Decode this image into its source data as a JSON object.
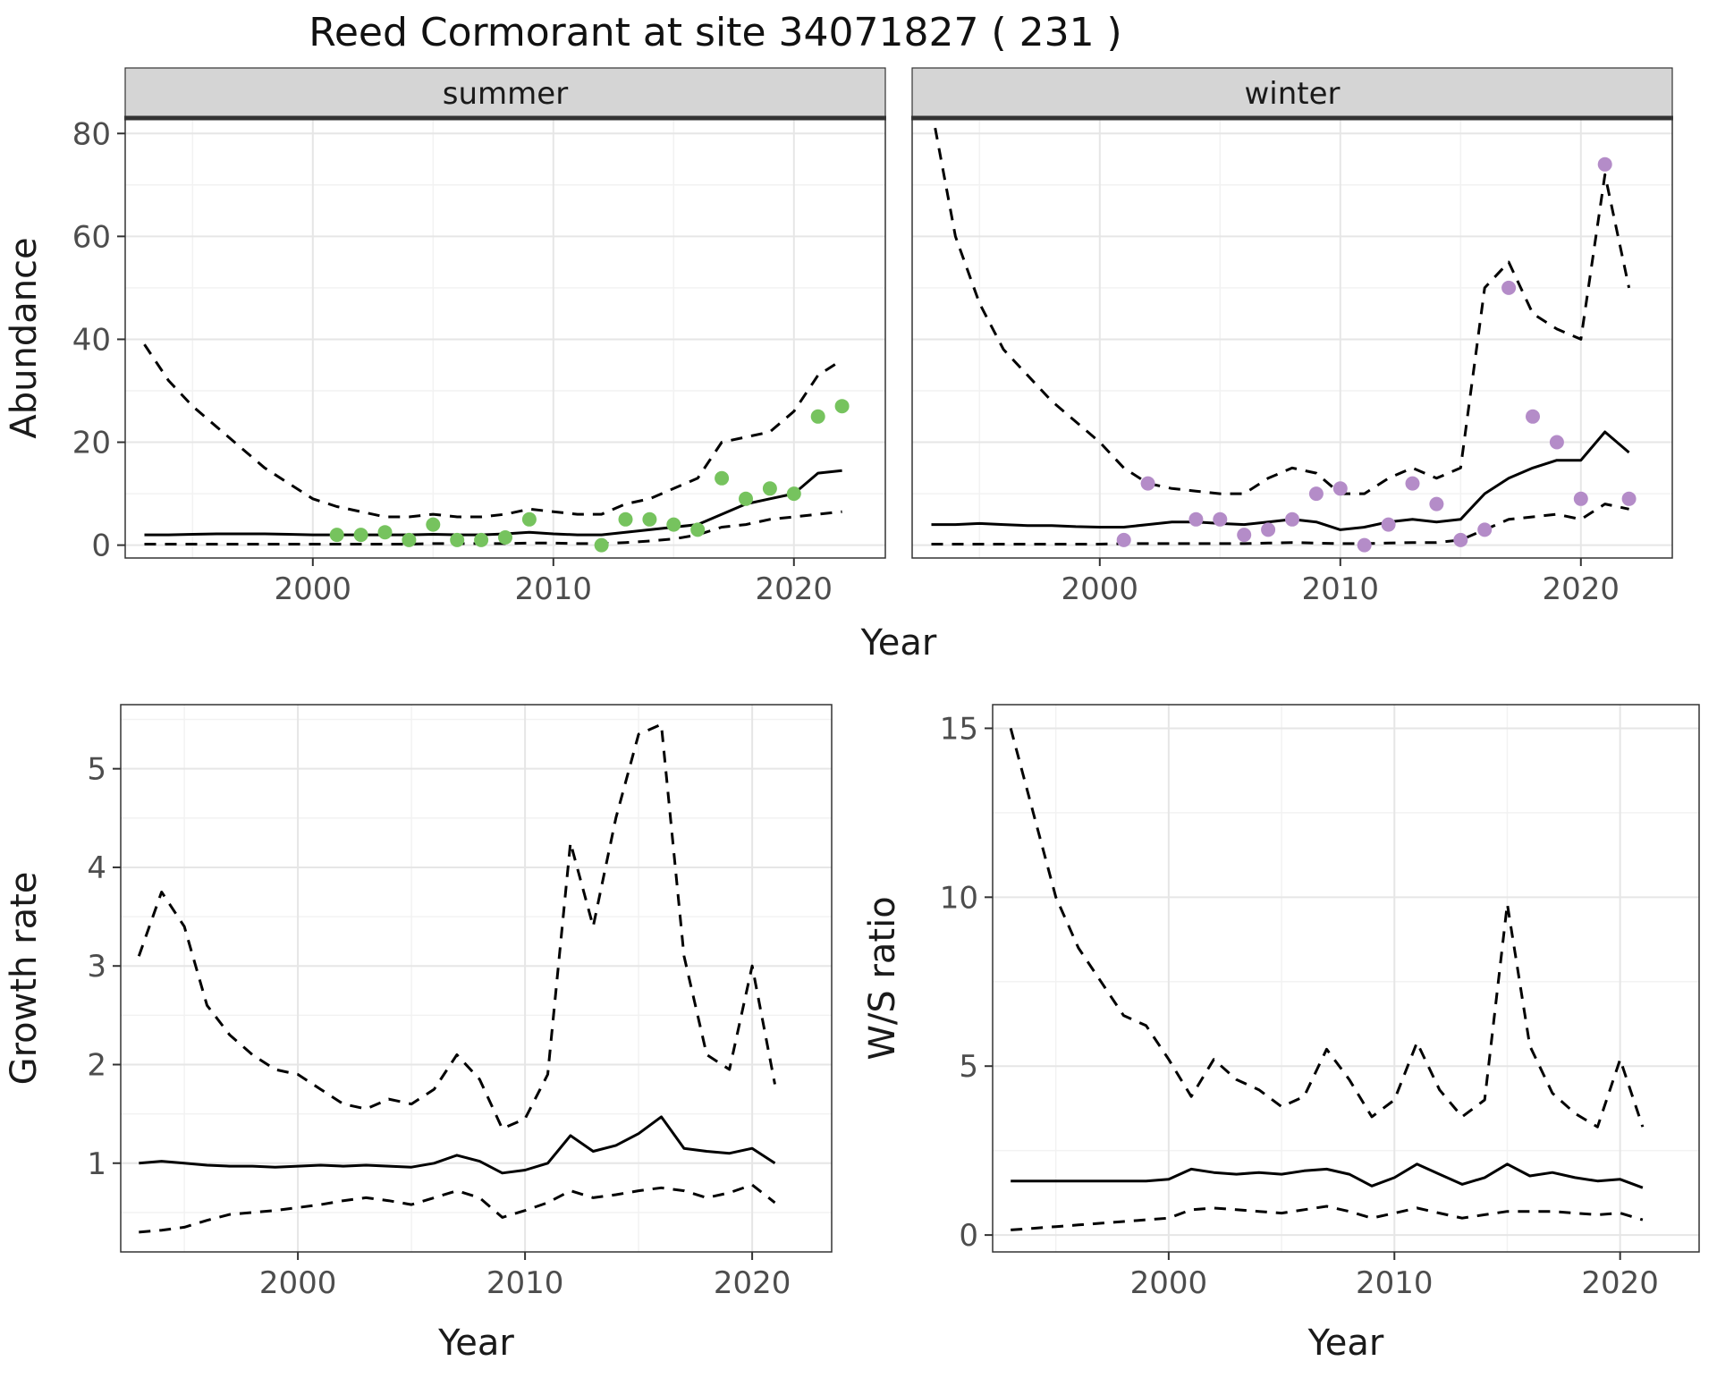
{
  "title": "Reed Cormorant at site 34071827 ( 231 )",
  "colors": {
    "summer_point": "#76c35e",
    "winter_point": "#b48cc8",
    "line": "#000000",
    "strip_bg": "#d5d5d5",
    "grid_major": "#e6e6e6",
    "grid_minor": "#f2f2f2",
    "border": "#333333",
    "tick_label": "#4d4d4d",
    "axis_title": "#1a1a1a"
  },
  "chart_data": [
    {
      "id": "abundance",
      "type": "line",
      "xlabel": "Year",
      "ylabel": "Abundance",
      "xlim": [
        1992.2,
        2023.8
      ],
      "ylim": [
        -2.5,
        83
      ],
      "xticks": [
        2000,
        2010,
        2020
      ],
      "xminor": [
        1995,
        2005,
        2015
      ],
      "yticks": [
        0,
        20,
        40,
        60,
        80
      ],
      "yminor": [
        10,
        30,
        50,
        70
      ],
      "years": [
        1993,
        1994,
        1995,
        1996,
        1997,
        1998,
        1999,
        2000,
        2001,
        2002,
        2003,
        2004,
        2005,
        2006,
        2007,
        2008,
        2009,
        2010,
        2011,
        2012,
        2013,
        2014,
        2015,
        2016,
        2017,
        2018,
        2019,
        2020,
        2021,
        2022
      ],
      "facets": [
        {
          "label": "summer",
          "point_color": "#76c35e",
          "fit": [
            2.0,
            2.0,
            2.1,
            2.2,
            2.2,
            2.2,
            2.1,
            2.0,
            2.0,
            2.0,
            2.0,
            2.0,
            2.1,
            2.0,
            2.0,
            2.2,
            2.5,
            2.2,
            2.0,
            2.0,
            2.5,
            3.0,
            3.5,
            4.0,
            6.0,
            8.0,
            9.0,
            10.0,
            14.0,
            14.5
          ],
          "upper": [
            39,
            32,
            27,
            23,
            19,
            15,
            12,
            9,
            7.5,
            6.5,
            5.5,
            5.5,
            6,
            5.5,
            5.5,
            6,
            7,
            6.5,
            6,
            6,
            8,
            9,
            11,
            13,
            20,
            21,
            22,
            26,
            33,
            36
          ],
          "lower": [
            0.2,
            0.2,
            0.2,
            0.2,
            0.2,
            0.2,
            0.2,
            0.2,
            0.2,
            0.2,
            0.2,
            0.2,
            0.3,
            0.3,
            0.3,
            0.3,
            0.4,
            0.4,
            0.3,
            0.3,
            0.5,
            0.8,
            1.2,
            2,
            3.5,
            4,
            5,
            5.5,
            6,
            6.5
          ],
          "points": {
            "x": [
              2001,
              2002,
              2003,
              2004,
              2005,
              2006,
              2007,
              2008,
              2009,
              2012,
              2013,
              2014,
              2015,
              2016,
              2017,
              2018,
              2019,
              2020,
              2021,
              2022
            ],
            "y": [
              2,
              2,
              2.5,
              1,
              4,
              1,
              1,
              1.5,
              5,
              0,
              5,
              5,
              4,
              3,
              13,
              9,
              11,
              10,
              25,
              27
            ]
          }
        },
        {
          "label": "winter",
          "point_color": "#b48cc8",
          "fit": [
            4,
            4,
            4.2,
            4,
            3.8,
            3.8,
            3.6,
            3.5,
            3.5,
            4,
            4.5,
            4.5,
            4.2,
            4,
            4.5,
            5,
            4.5,
            3,
            3.5,
            4.5,
            5,
            4.5,
            5,
            10,
            13,
            15,
            16.5,
            16.5,
            22,
            18
          ],
          "upper": [
            85,
            60,
            47,
            38,
            33,
            28,
            24,
            20,
            15,
            12,
            11,
            10.5,
            10,
            10,
            13,
            15,
            14,
            10,
            10,
            13,
            15,
            13,
            15,
            50,
            55,
            45,
            42,
            40,
            72,
            50
          ],
          "lower": [
            0.2,
            0.2,
            0.2,
            0.2,
            0.2,
            0.2,
            0.2,
            0.2,
            0.3,
            0.3,
            0.3,
            0.3,
            0.3,
            0.3,
            0.4,
            0.5,
            0.4,
            0.3,
            0.3,
            0.4,
            0.5,
            0.5,
            1,
            3,
            5,
            5.5,
            6,
            5,
            8,
            7
          ],
          "points": {
            "x": [
              2001,
              2002,
              2004,
              2005,
              2006,
              2007,
              2008,
              2009,
              2010,
              2011,
              2012,
              2013,
              2014,
              2015,
              2016,
              2017,
              2018,
              2019,
              2020,
              2021,
              2022
            ],
            "y": [
              1,
              12,
              5,
              5,
              2,
              3,
              5,
              10,
              11,
              0,
              4,
              12,
              8,
              1,
              3,
              50,
              25,
              20,
              9,
              74,
              9
            ]
          }
        }
      ]
    },
    {
      "id": "growth_rate",
      "type": "line",
      "xlabel": "Year",
      "ylabel": "Growth rate",
      "xlim": [
        1992.2,
        2023.5
      ],
      "ylim": [
        0.1,
        5.65
      ],
      "xticks": [
        2000,
        2010,
        2020
      ],
      "xminor": [
        1995,
        2005,
        2015
      ],
      "yticks": [
        1,
        2,
        3,
        4,
        5
      ],
      "yminor": [
        0.5,
        1.5,
        2.5,
        3.5,
        4.5,
        5.5
      ],
      "years": [
        1993,
        1994,
        1995,
        1996,
        1997,
        1998,
        1999,
        2000,
        2001,
        2002,
        2003,
        2004,
        2005,
        2006,
        2007,
        2008,
        2009,
        2010,
        2011,
        2012,
        2013,
        2014,
        2015,
        2016,
        2017,
        2018,
        2019,
        2020,
        2021
      ],
      "fit": [
        1.0,
        1.02,
        1.0,
        0.98,
        0.97,
        0.97,
        0.96,
        0.97,
        0.98,
        0.97,
        0.98,
        0.97,
        0.96,
        1.0,
        1.08,
        1.02,
        0.9,
        0.93,
        1.0,
        1.28,
        1.12,
        1.18,
        1.3,
        1.47,
        1.15,
        1.12,
        1.1,
        1.15,
        1.0
      ],
      "upper": [
        3.1,
        3.75,
        3.4,
        2.6,
        2.3,
        2.1,
        1.95,
        1.9,
        1.75,
        1.6,
        1.55,
        1.65,
        1.6,
        1.75,
        2.1,
        1.85,
        1.35,
        1.45,
        1.9,
        4.25,
        3.4,
        4.5,
        5.35,
        5.45,
        3.1,
        2.1,
        1.95,
        3.0,
        1.8
      ],
      "lower": [
        0.3,
        0.32,
        0.35,
        0.42,
        0.48,
        0.5,
        0.52,
        0.55,
        0.58,
        0.62,
        0.65,
        0.62,
        0.58,
        0.65,
        0.72,
        0.65,
        0.45,
        0.52,
        0.6,
        0.72,
        0.65,
        0.68,
        0.72,
        0.75,
        0.72,
        0.65,
        0.7,
        0.78,
        0.6
      ]
    },
    {
      "id": "ws_ratio",
      "type": "line",
      "xlabel": "Year",
      "ylabel": "W/S ratio",
      "xlim": [
        1992.2,
        2023.5
      ],
      "ylim": [
        -0.5,
        15.7
      ],
      "xticks": [
        2000,
        2010,
        2020
      ],
      "xminor": [
        1995,
        2005,
        2015
      ],
      "yticks": [
        0,
        5,
        10,
        15
      ],
      "yminor": [
        2.5,
        7.5,
        12.5
      ],
      "years": [
        1993,
        1994,
        1995,
        1996,
        1997,
        1998,
        1999,
        2000,
        2001,
        2002,
        2003,
        2004,
        2005,
        2006,
        2007,
        2008,
        2009,
        2010,
        2011,
        2012,
        2013,
        2014,
        2015,
        2016,
        2017,
        2018,
        2019,
        2020,
        2021
      ],
      "fit": [
        1.6,
        1.6,
        1.6,
        1.6,
        1.6,
        1.6,
        1.6,
        1.65,
        1.95,
        1.85,
        1.8,
        1.85,
        1.8,
        1.9,
        1.95,
        1.8,
        1.45,
        1.7,
        2.1,
        1.8,
        1.5,
        1.7,
        2.1,
        1.75,
        1.85,
        1.7,
        1.6,
        1.65,
        1.4
      ],
      "upper": [
        15,
        12.5,
        10,
        8.5,
        7.5,
        6.5,
        6.2,
        5.2,
        4.1,
        5.2,
        4.6,
        4.3,
        3.8,
        4.1,
        5.5,
        4.6,
        3.5,
        4.0,
        5.7,
        4.3,
        3.5,
        4.0,
        9.8,
        5.6,
        4.2,
        3.6,
        3.2,
        5.2,
        3.2
      ],
      "lower": [
        0.15,
        0.2,
        0.25,
        0.3,
        0.35,
        0.4,
        0.45,
        0.5,
        0.75,
        0.8,
        0.75,
        0.7,
        0.65,
        0.75,
        0.85,
        0.7,
        0.5,
        0.65,
        0.8,
        0.65,
        0.5,
        0.6,
        0.7,
        0.7,
        0.7,
        0.65,
        0.6,
        0.65,
        0.45
      ]
    }
  ]
}
